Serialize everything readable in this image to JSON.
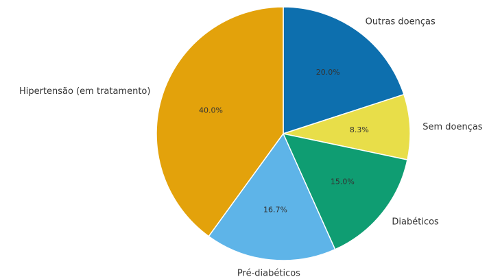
{
  "chart_data": {
    "type": "pie",
    "categories": [
      "Outras doenças",
      "Sem doenças",
      "Diabéticos",
      "Pré-diabéticos",
      "Hipertensão (em tratamento)"
    ],
    "values": [
      20.0,
      8.3,
      15.0,
      16.7,
      40.0
    ],
    "labels": [
      "20.0%",
      "8.3%",
      "15.0%",
      "16.7%",
      "40.0%"
    ],
    "colors": [
      "#0d6fae",
      "#e8de49",
      "#0f9d72",
      "#5eb4e8",
      "#e3a20b"
    ],
    "start_angle_deg": 90,
    "direction": "clockwise",
    "legend": "none"
  }
}
